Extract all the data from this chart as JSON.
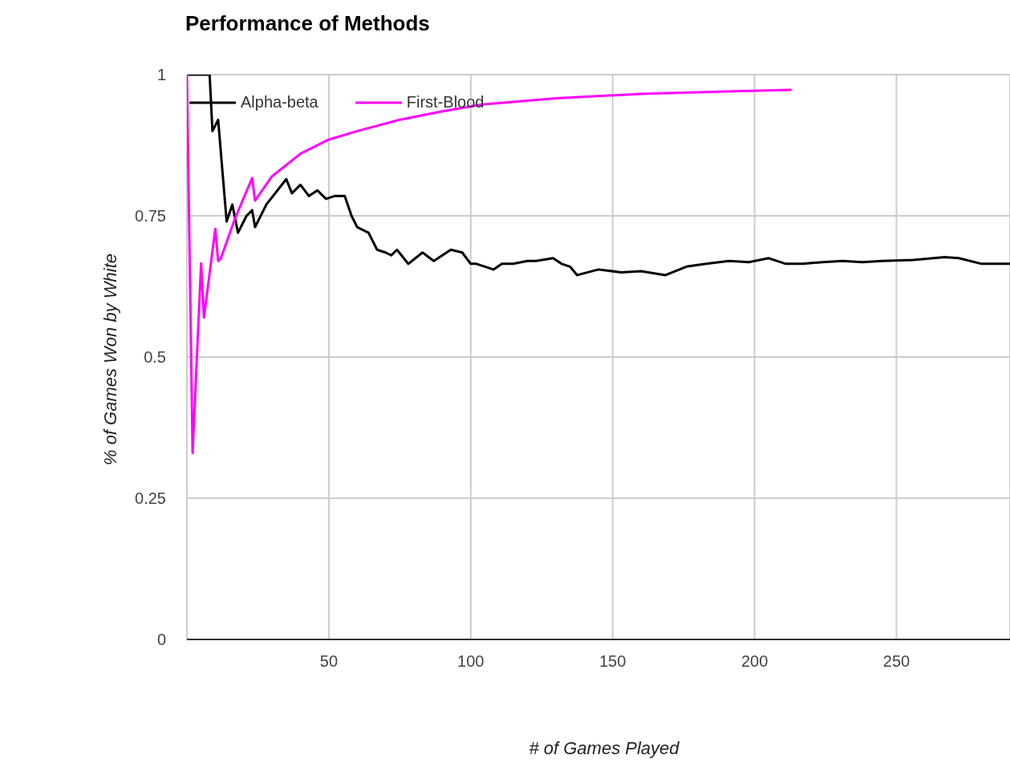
{
  "chart_data": {
    "type": "line",
    "title": "Performance of Methods",
    "xlabel": "# of Games Played",
    "ylabel": "% of Games Won by White",
    "xlim": [
      0,
      290
    ],
    "xticks": [
      50,
      100,
      150,
      200,
      250
    ],
    "ylim": [
      0,
      1
    ],
    "yticks": [
      0,
      0.25,
      0.5,
      0.75,
      1
    ],
    "grid": true,
    "legend": "top left",
    "marker": "none",
    "series": [
      {
        "name": "Alpha-beta",
        "color": "#000000",
        "x": [
          0,
          8,
          9,
          11,
          14,
          16,
          18,
          21,
          23,
          24,
          28,
          35,
          37,
          40,
          43,
          46,
          49,
          52,
          55.6,
          58,
          60,
          64,
          67,
          70,
          72,
          74,
          78,
          83,
          87,
          90,
          93,
          97,
          100,
          102,
          108,
          111,
          115,
          120,
          123,
          129,
          132,
          135,
          137.5,
          145,
          153,
          160,
          168.6,
          176,
          183,
          191,
          198,
          205,
          211,
          217,
          224,
          231,
          238,
          245,
          256,
          267,
          272,
          280,
          290
        ],
        "values": [
          1,
          1,
          0.9,
          0.92,
          0.74,
          0.77,
          0.72,
          0.75,
          0.76,
          0.73,
          0.77,
          0.815,
          0.79,
          0.805,
          0.785,
          0.795,
          0.78,
          0.785,
          0.785,
          0.75,
          0.73,
          0.72,
          0.69,
          0.685,
          0.68,
          0.69,
          0.665,
          0.685,
          0.67,
          0.68,
          0.69,
          0.685,
          0.665,
          0.665,
          0.655,
          0.665,
          0.665,
          0.67,
          0.67,
          0.675,
          0.665,
          0.66,
          0.645,
          0.655,
          0.65,
          0.652,
          0.645,
          0.66,
          0.665,
          0.67,
          0.668,
          0.675,
          0.665,
          0.665,
          0.668,
          0.67,
          0.668,
          0.67,
          0.672,
          0.677,
          0.675,
          0.665,
          0.665
        ]
      },
      {
        "name": "First-Blood",
        "color": "#ff00ff",
        "x": [
          0,
          2,
          5,
          6,
          10,
          11,
          12,
          17,
          23,
          24,
          30,
          40,
          50,
          60,
          75,
          90,
          104,
          130,
          160,
          190,
          213
        ],
        "values": [
          1,
          0.33,
          0.666,
          0.57,
          0.727,
          0.67,
          0.675,
          0.746,
          0.817,
          0.777,
          0.82,
          0.86,
          0.885,
          0.9,
          0.92,
          0.935,
          0.947,
          0.958,
          0.966,
          0.97,
          0.973
        ]
      }
    ]
  }
}
